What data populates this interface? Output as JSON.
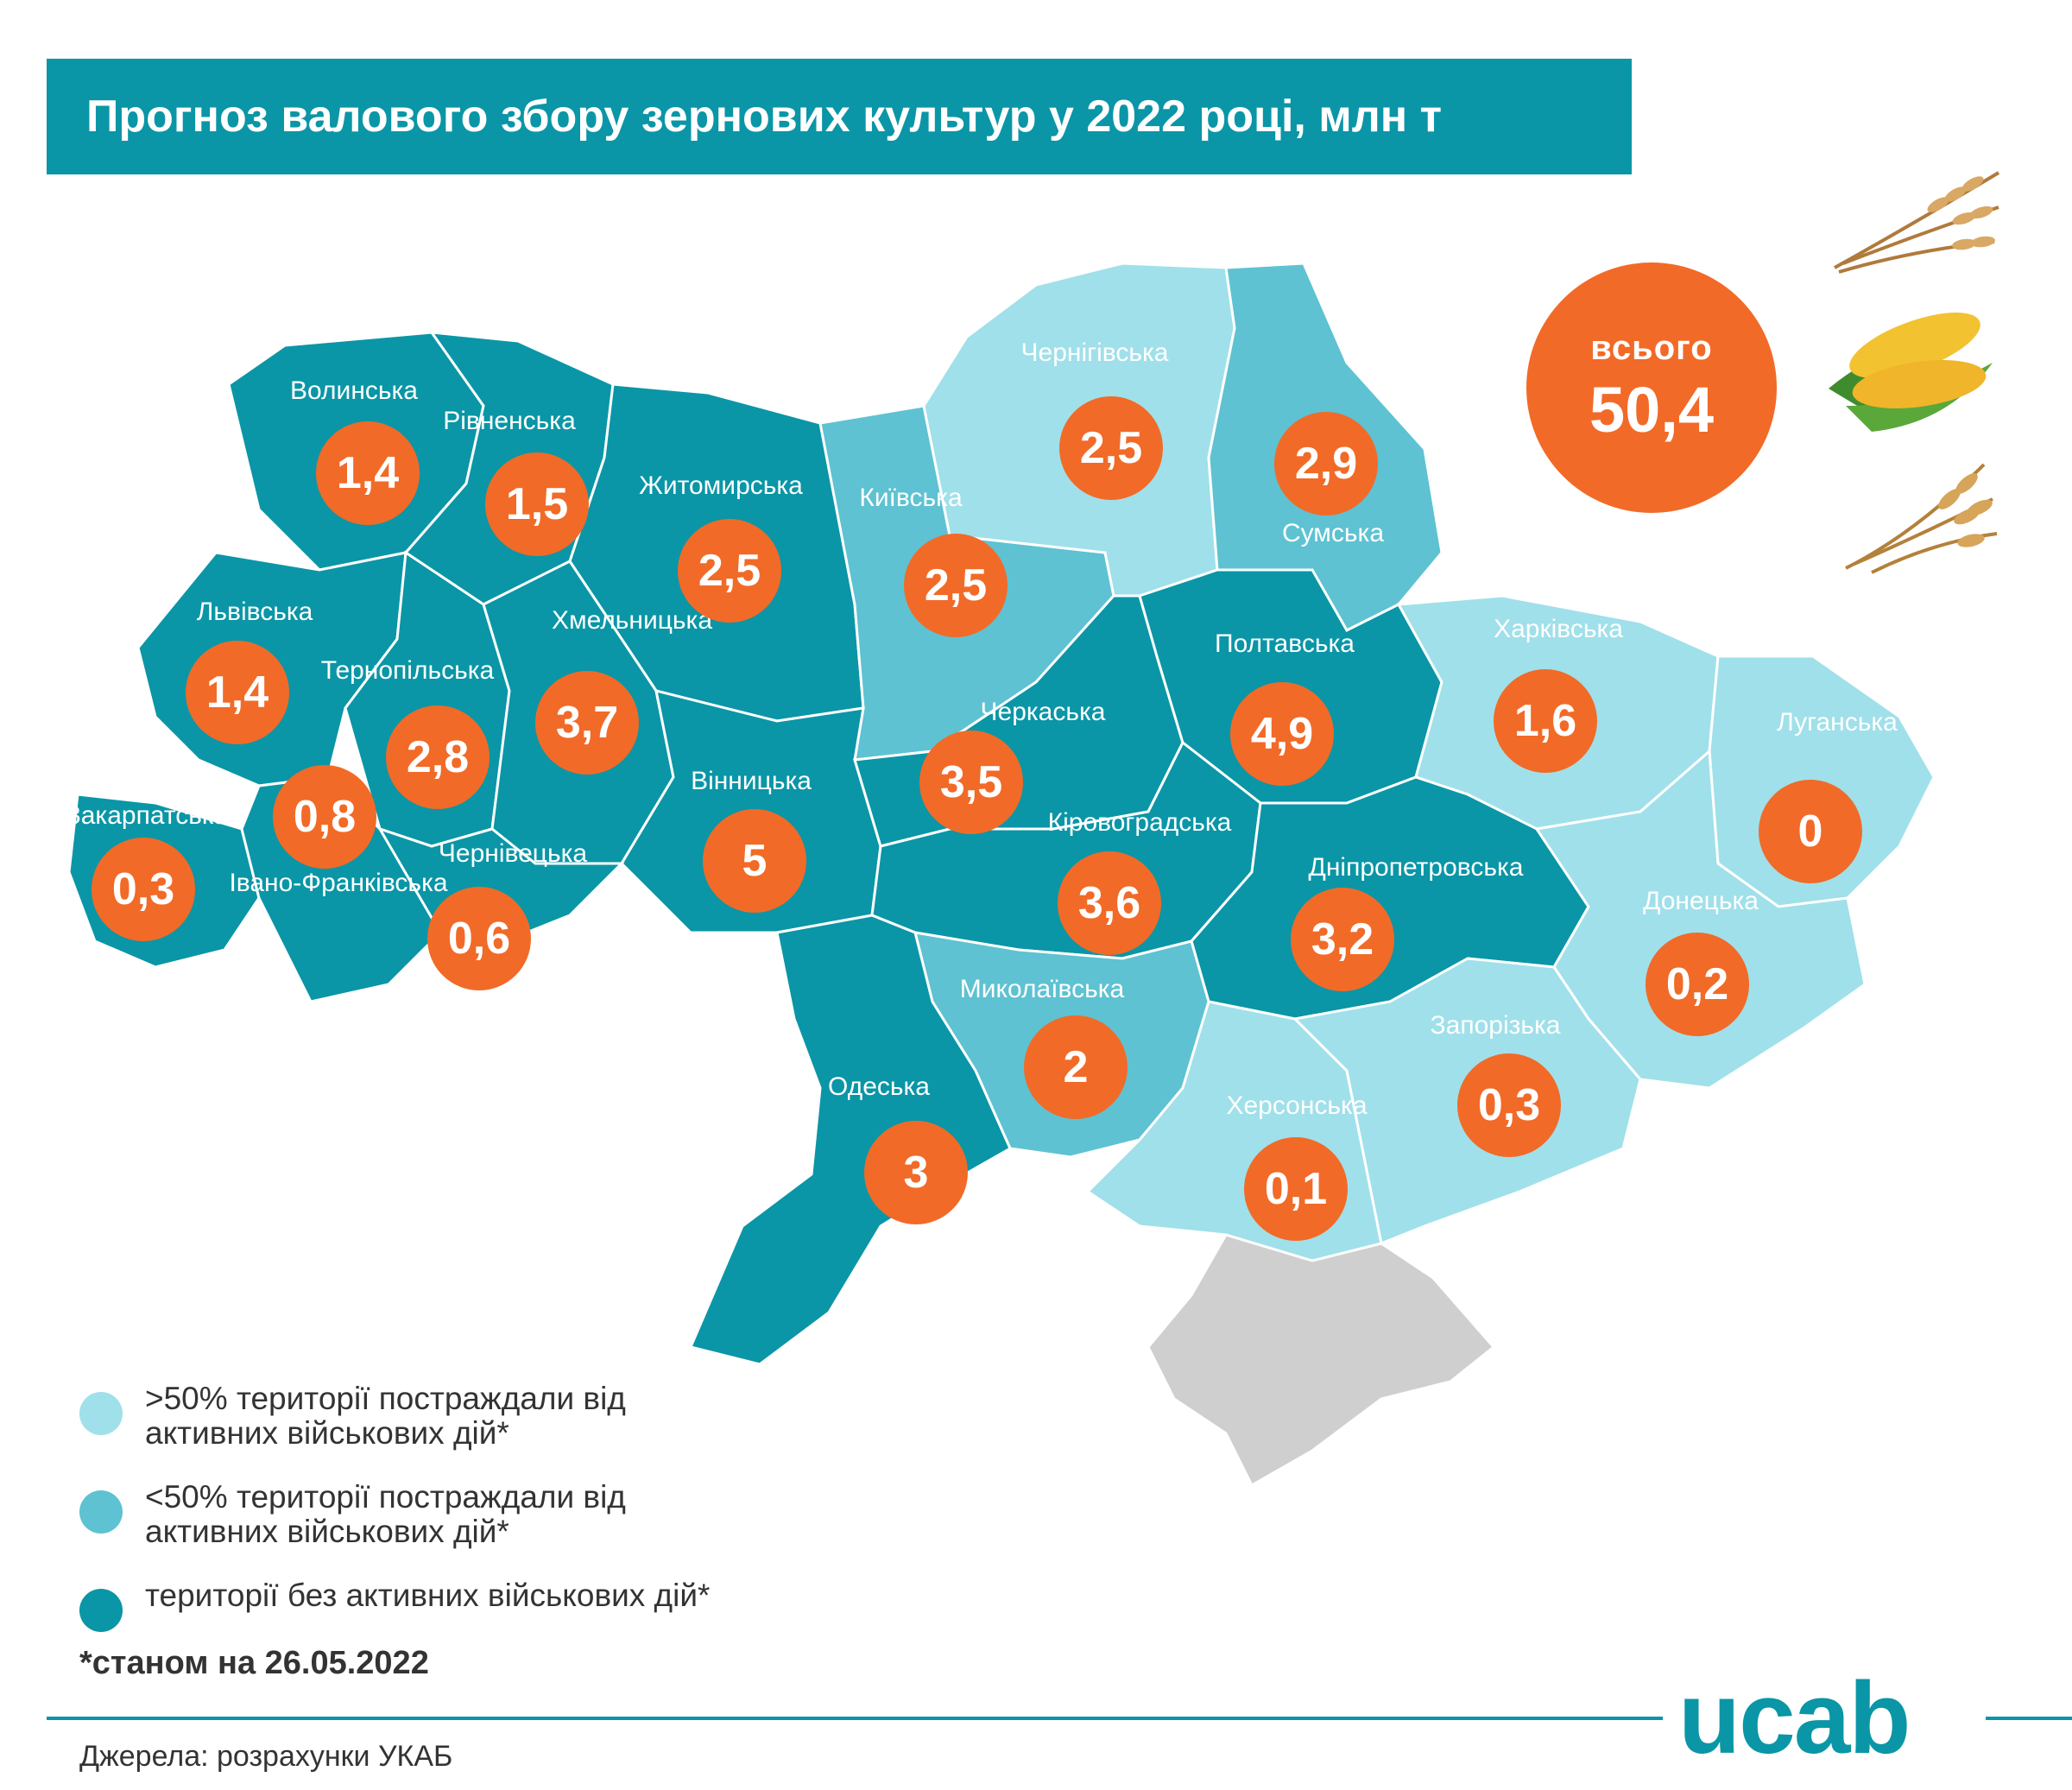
{
  "title": "Прогноз валового збору зернових культур у 2022 році, млн т",
  "total": {
    "label": "всього",
    "value": "50,4"
  },
  "colors": {
    "heavy": "#a0e0ea",
    "partial": "#5ec2d2",
    "none": "#0a96a6",
    "occupied": "#cfcfcf",
    "bubble": "#f26a27",
    "outline": "#e6e6e6"
  },
  "regions": [
    {
      "name": "Волинська",
      "value": "1,4",
      "category": "none"
    },
    {
      "name": "Рівненська",
      "value": "1,5",
      "category": "none"
    },
    {
      "name": "Житомирська",
      "value": "2,5",
      "category": "none"
    },
    {
      "name": "Київська",
      "value": "2,5",
      "category": "partial"
    },
    {
      "name": "Чернігівська",
      "value": "2,5",
      "category": "heavy"
    },
    {
      "name": "Сумська",
      "value": "2,9",
      "category": "partial"
    },
    {
      "name": "Львівська",
      "value": "1,4",
      "category": "none"
    },
    {
      "name": "Тернопільська",
      "value": "2,8",
      "category": "none"
    },
    {
      "name": "Хмельницька",
      "value": "3,7",
      "category": "none"
    },
    {
      "name": "Вінницька",
      "value": "5",
      "category": "none"
    },
    {
      "name": "Черкаська",
      "value": "3,5",
      "category": "none"
    },
    {
      "name": "Полтавська",
      "value": "4,9",
      "category": "none"
    },
    {
      "name": "Харківська",
      "value": "1,6",
      "category": "heavy"
    },
    {
      "name": "Луганська",
      "value": "0",
      "category": "heavy"
    },
    {
      "name": "Закарпатська",
      "value": "0,3",
      "category": "none"
    },
    {
      "name": "Івано-Франківська",
      "value": "0,8",
      "category": "none"
    },
    {
      "name": "Чернівецька",
      "value": "0,6",
      "category": "none"
    },
    {
      "name": "Кіровоградська",
      "value": "3,6",
      "category": "none"
    },
    {
      "name": "Дніпропетровська",
      "value": "3,2",
      "category": "none"
    },
    {
      "name": "Донецька",
      "value": "0,2",
      "category": "heavy"
    },
    {
      "name": "Миколаївська",
      "value": "2",
      "category": "partial"
    },
    {
      "name": "Одеська",
      "value": "3",
      "category": "none"
    },
    {
      "name": "Херсонська",
      "value": "0,1",
      "category": "heavy"
    },
    {
      "name": "Запорізька",
      "value": "0,3",
      "category": "heavy"
    }
  ],
  "legend": [
    {
      "text": ">50% території постраждали від активних військових дій*",
      "color": "#a0e0ea"
    },
    {
      "text": "<50% території постраждали від активних військових дій*",
      "color": "#5ec2d2"
    },
    {
      "text": "території без активних військових дій*",
      "color": "#0a96a6"
    }
  ],
  "footnote": "*станом на 26.05.2022",
  "source": "Джерела: розрахунки УКАБ",
  "logo": "ucab",
  "icons": [
    "wheat-icon",
    "corn-icon",
    "barley-icon"
  ]
}
